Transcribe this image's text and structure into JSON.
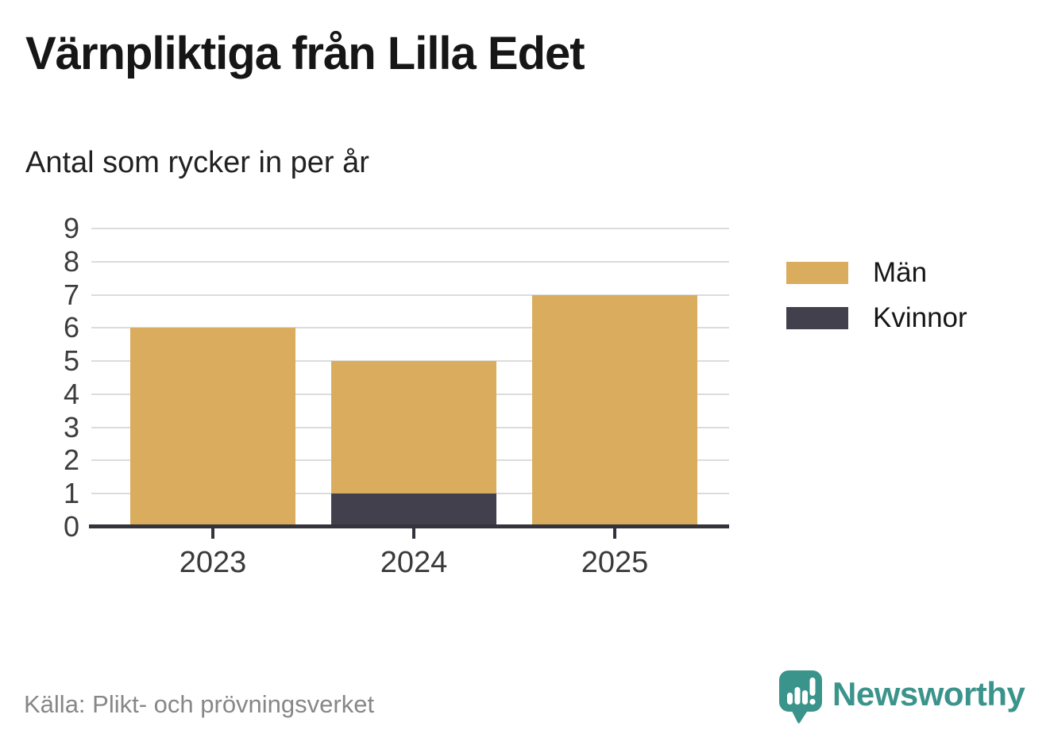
{
  "title": "Värnpliktiga från Lilla Edet",
  "subtitle": "Antal som rycker in per år",
  "source": "Källa: Plikt- och prövningsverket",
  "brand": {
    "name": "Newsworthy",
    "icon": "bar-chart-speech-bubble-icon",
    "color": "#3b948c"
  },
  "colors": {
    "men": "#daac5e",
    "women": "#42404d",
    "grid": "#dcdcdc",
    "axis": "#35343c",
    "tick_text": "#3d3d3d",
    "title_text": "#161616",
    "source_text": "#878787"
  },
  "legend": {
    "items": [
      {
        "label": "Män",
        "color": "#daac5e"
      },
      {
        "label": "Kvinnor",
        "color": "#42404d"
      }
    ]
  },
  "chart_data": {
    "type": "bar",
    "stacked": true,
    "title": "Värnpliktiga från Lilla Edet",
    "subtitle": "Antal som rycker in per år",
    "categories": [
      "2023",
      "2024",
      "2025"
    ],
    "series": [
      {
        "name": "Män",
        "color": "#daac5e",
        "values": [
          6,
          4,
          7
        ]
      },
      {
        "name": "Kvinnor",
        "color": "#42404d",
        "values": [
          0,
          1,
          0
        ]
      }
    ],
    "stack_totals": [
      6,
      5,
      7
    ],
    "xlabel": "",
    "ylabel": "",
    "ylim": [
      0,
      9
    ],
    "yticks": [
      0,
      1,
      2,
      3,
      4,
      5,
      6,
      7,
      8,
      9
    ],
    "grid": true,
    "legend_position": "right",
    "source": "Källa: Plikt- och prövningsverket"
  }
}
